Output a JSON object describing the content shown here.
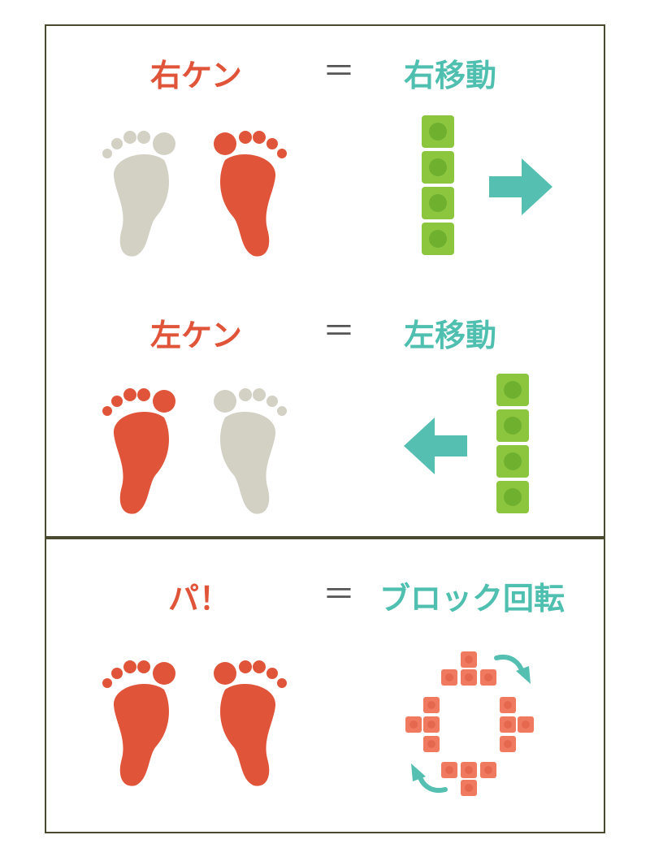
{
  "colors": {
    "active_foot": "#e0553a",
    "inactive_foot": "#d3d0c4",
    "action_text": "#4fbfb0",
    "arrow": "#55bfb2",
    "block_green": "#8cc63f",
    "block_red": "#f07a5f",
    "border": "#4a4a2e"
  },
  "rows": [
    {
      "gesture": "右ケン",
      "equals": "＝",
      "action": "右移動",
      "left_foot": "inactive",
      "right_foot": "active",
      "arrow_icon": "arrow-right-icon"
    },
    {
      "gesture": "左ケン",
      "equals": "＝",
      "action": "左移動",
      "left_foot": "active",
      "right_foot": "inactive",
      "arrow_icon": "arrow-left-icon"
    },
    {
      "gesture": "パ！",
      "equals": "＝",
      "action": "ブロック回転",
      "left_foot": "active",
      "right_foot": "active",
      "arrow_icon": "rotate-arrows-icon"
    }
  ]
}
